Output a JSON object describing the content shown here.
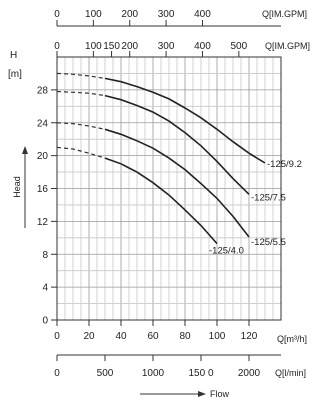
{
  "chart_data": {
    "type": "line",
    "title": "",
    "xlabel": "Flow",
    "ylabel": "Head",
    "y_unit": "[m]",
    "y_symbol": "H",
    "ylim": [
      0,
      32
    ],
    "xlim_m3h": [
      0,
      140
    ],
    "y_ticks": [
      "0",
      "4",
      "8",
      "12",
      "16",
      "20",
      "24",
      "28"
    ],
    "x_scales": [
      {
        "name": "im_gpm_top",
        "unit": "Q[IM.GPM]",
        "ticks": [
          "0",
          "100",
          "200",
          "300",
          "400"
        ]
      },
      {
        "name": "im_gpm_inner",
        "unit": "Q[IM.GPM]",
        "ticks": [
          "0",
          "100",
          "150",
          "200",
          "300",
          "400",
          "500"
        ]
      },
      {
        "name": "m3h",
        "unit": "Q[m³/h]",
        "ticks": [
          "0",
          "20",
          "40",
          "60",
          "80",
          "100",
          "120"
        ]
      },
      {
        "name": "l_min",
        "unit": "Q[l/min]",
        "ticks": [
          "0",
          "500",
          "1000",
          "150 0",
          "2000"
        ]
      }
    ],
    "series": [
      {
        "name": "-125/9.2",
        "x": [
          0,
          10,
          20,
          30,
          40,
          50,
          60,
          70,
          80,
          90,
          100,
          110,
          120,
          130
        ],
        "y": [
          30,
          29.9,
          29.7,
          29.4,
          29.0,
          28.4,
          27.7,
          26.9,
          25.8,
          24.6,
          23.2,
          21.7,
          20.3,
          19.1
        ]
      },
      {
        "name": "-125/7.5",
        "x": [
          0,
          10,
          20,
          30,
          40,
          50,
          60,
          70,
          80,
          90,
          100,
          110,
          120
        ],
        "y": [
          27.8,
          27.7,
          27.6,
          27.3,
          26.8,
          26.1,
          25.3,
          24.2,
          22.8,
          21.2,
          19.3,
          17.2,
          15.3
        ]
      },
      {
        "name": "-125/5.5",
        "x": [
          0,
          10,
          20,
          30,
          40,
          50,
          60,
          70,
          80,
          90,
          100,
          110,
          120
        ],
        "y": [
          24.0,
          23.9,
          23.6,
          23.2,
          22.6,
          21.8,
          20.9,
          19.7,
          18.3,
          16.6,
          14.8,
          12.6,
          10.1
        ]
      },
      {
        "name": "-125/4.0",
        "x": [
          0,
          10,
          20,
          30,
          40,
          50,
          60,
          70,
          80,
          90,
          100
        ],
        "y": [
          21.0,
          20.8,
          20.3,
          19.7,
          19.0,
          18.0,
          16.7,
          15.2,
          13.4,
          11.5,
          9.3
        ]
      }
    ],
    "dashed_below_x": 30,
    "grid": true,
    "legend": "none"
  }
}
